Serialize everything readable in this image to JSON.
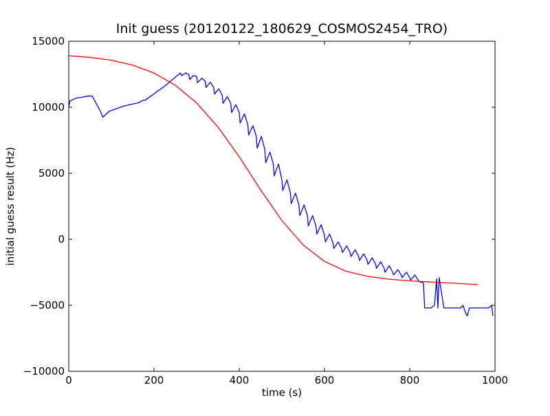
{
  "chart_data": {
    "type": "line",
    "title": "Init guess (20120122_180629_COSMOS2454_TRO)",
    "xlabel": "time (s)",
    "ylabel": "initial guess result (Hz)",
    "xlim": [
      0,
      1000
    ],
    "ylim": [
      -10000,
      15000
    ],
    "x_ticks": [
      0,
      200,
      400,
      600,
      800,
      1000
    ],
    "y_ticks": [
      -10000,
      -5000,
      0,
      5000,
      10000,
      15000
    ],
    "x_tick_labels": [
      "0",
      "200",
      "400",
      "600",
      "800",
      "1000"
    ],
    "y_tick_labels": [
      "−10000",
      "−5000",
      "0",
      "5000",
      "10000",
      "15000"
    ],
    "grid": false,
    "legend": "none",
    "series": [
      {
        "color": "#0000ff",
        "x": [
          0,
          3,
          8,
          18,
          30,
          45,
          55,
          75,
          80,
          95,
          130,
          165,
          172,
          180,
          225,
          262,
          265,
          275,
          282,
          284,
          292,
          300,
          302,
          312,
          320,
          322,
          332,
          340,
          342,
          352,
          360,
          362,
          372,
          380,
          382,
          392,
          400,
          402,
          412,
          420,
          422,
          432,
          440,
          442,
          452,
          460,
          462,
          472,
          480,
          482,
          492,
          500,
          502,
          512,
          520,
          522,
          532,
          540,
          542,
          552,
          560,
          562,
          572,
          580,
          582,
          592,
          600,
          602,
          612,
          620,
          622,
          632,
          640,
          642,
          652,
          660,
          662,
          672,
          680,
          682,
          692,
          700,
          702,
          712,
          720,
          722,
          732,
          740,
          742,
          752,
          760,
          762,
          772,
          780,
          782,
          792,
          800,
          802,
          812,
          820,
          822,
          832,
          835,
          850,
          858,
          863,
          866,
          869,
          880,
          910,
          920,
          925,
          930,
          935,
          940,
          960,
          985,
          992,
          995
        ],
        "y": [
          10000,
          10500,
          10550,
          10700,
          10750,
          10850,
          10850,
          9650,
          9250,
          9700,
          10100,
          10350,
          10500,
          10550,
          11600,
          12600,
          12400,
          12600,
          12450,
          12100,
          12400,
          12350,
          11850,
          12200,
          12000,
          11500,
          11900,
          11500,
          11000,
          11400,
          10900,
          10300,
          10800,
          10300,
          9600,
          10200,
          9600,
          8800,
          9500,
          8700,
          7900,
          8600,
          7800,
          6900,
          7800,
          6800,
          5800,
          6600,
          5700,
          4800,
          5700,
          4500,
          3700,
          4500,
          3500,
          2700,
          3500,
          2600,
          1800,
          2600,
          1800,
          1000,
          1800,
          1000,
          400,
          1100,
          300,
          -200,
          400,
          -300,
          -700,
          -200,
          -700,
          -1000,
          -500,
          -1000,
          -1300,
          -800,
          -1300,
          -1600,
          -1100,
          -1600,
          -1900,
          -1400,
          -1900,
          -2200,
          -1700,
          -2200,
          -2500,
          -2000,
          -2500,
          -2700,
          -2300,
          -2700,
          -2900,
          -2500,
          -2900,
          -3100,
          -2700,
          -3100,
          -3200,
          -3300,
          -5200,
          -5200,
          -5000,
          -3000,
          -5200,
          -2900,
          -5200,
          -5200,
          -5200,
          -5000,
          -5500,
          -5800,
          -5200,
          -5200,
          -5200,
          -5000,
          -5800
        ]
      },
      {
        "color": "#ff0000",
        "x": [
          0,
          50,
          100,
          150,
          200,
          250,
          300,
          350,
          400,
          450,
          500,
          550,
          600,
          650,
          700,
          750,
          800,
          850,
          900,
          960
        ],
        "y": [
          13900,
          13780,
          13560,
          13190,
          12590,
          11670,
          10330,
          8500,
          6250,
          3750,
          1420,
          -430,
          -1680,
          -2420,
          -2800,
          -3020,
          -3150,
          -3240,
          -3320,
          -3430
        ]
      }
    ]
  }
}
